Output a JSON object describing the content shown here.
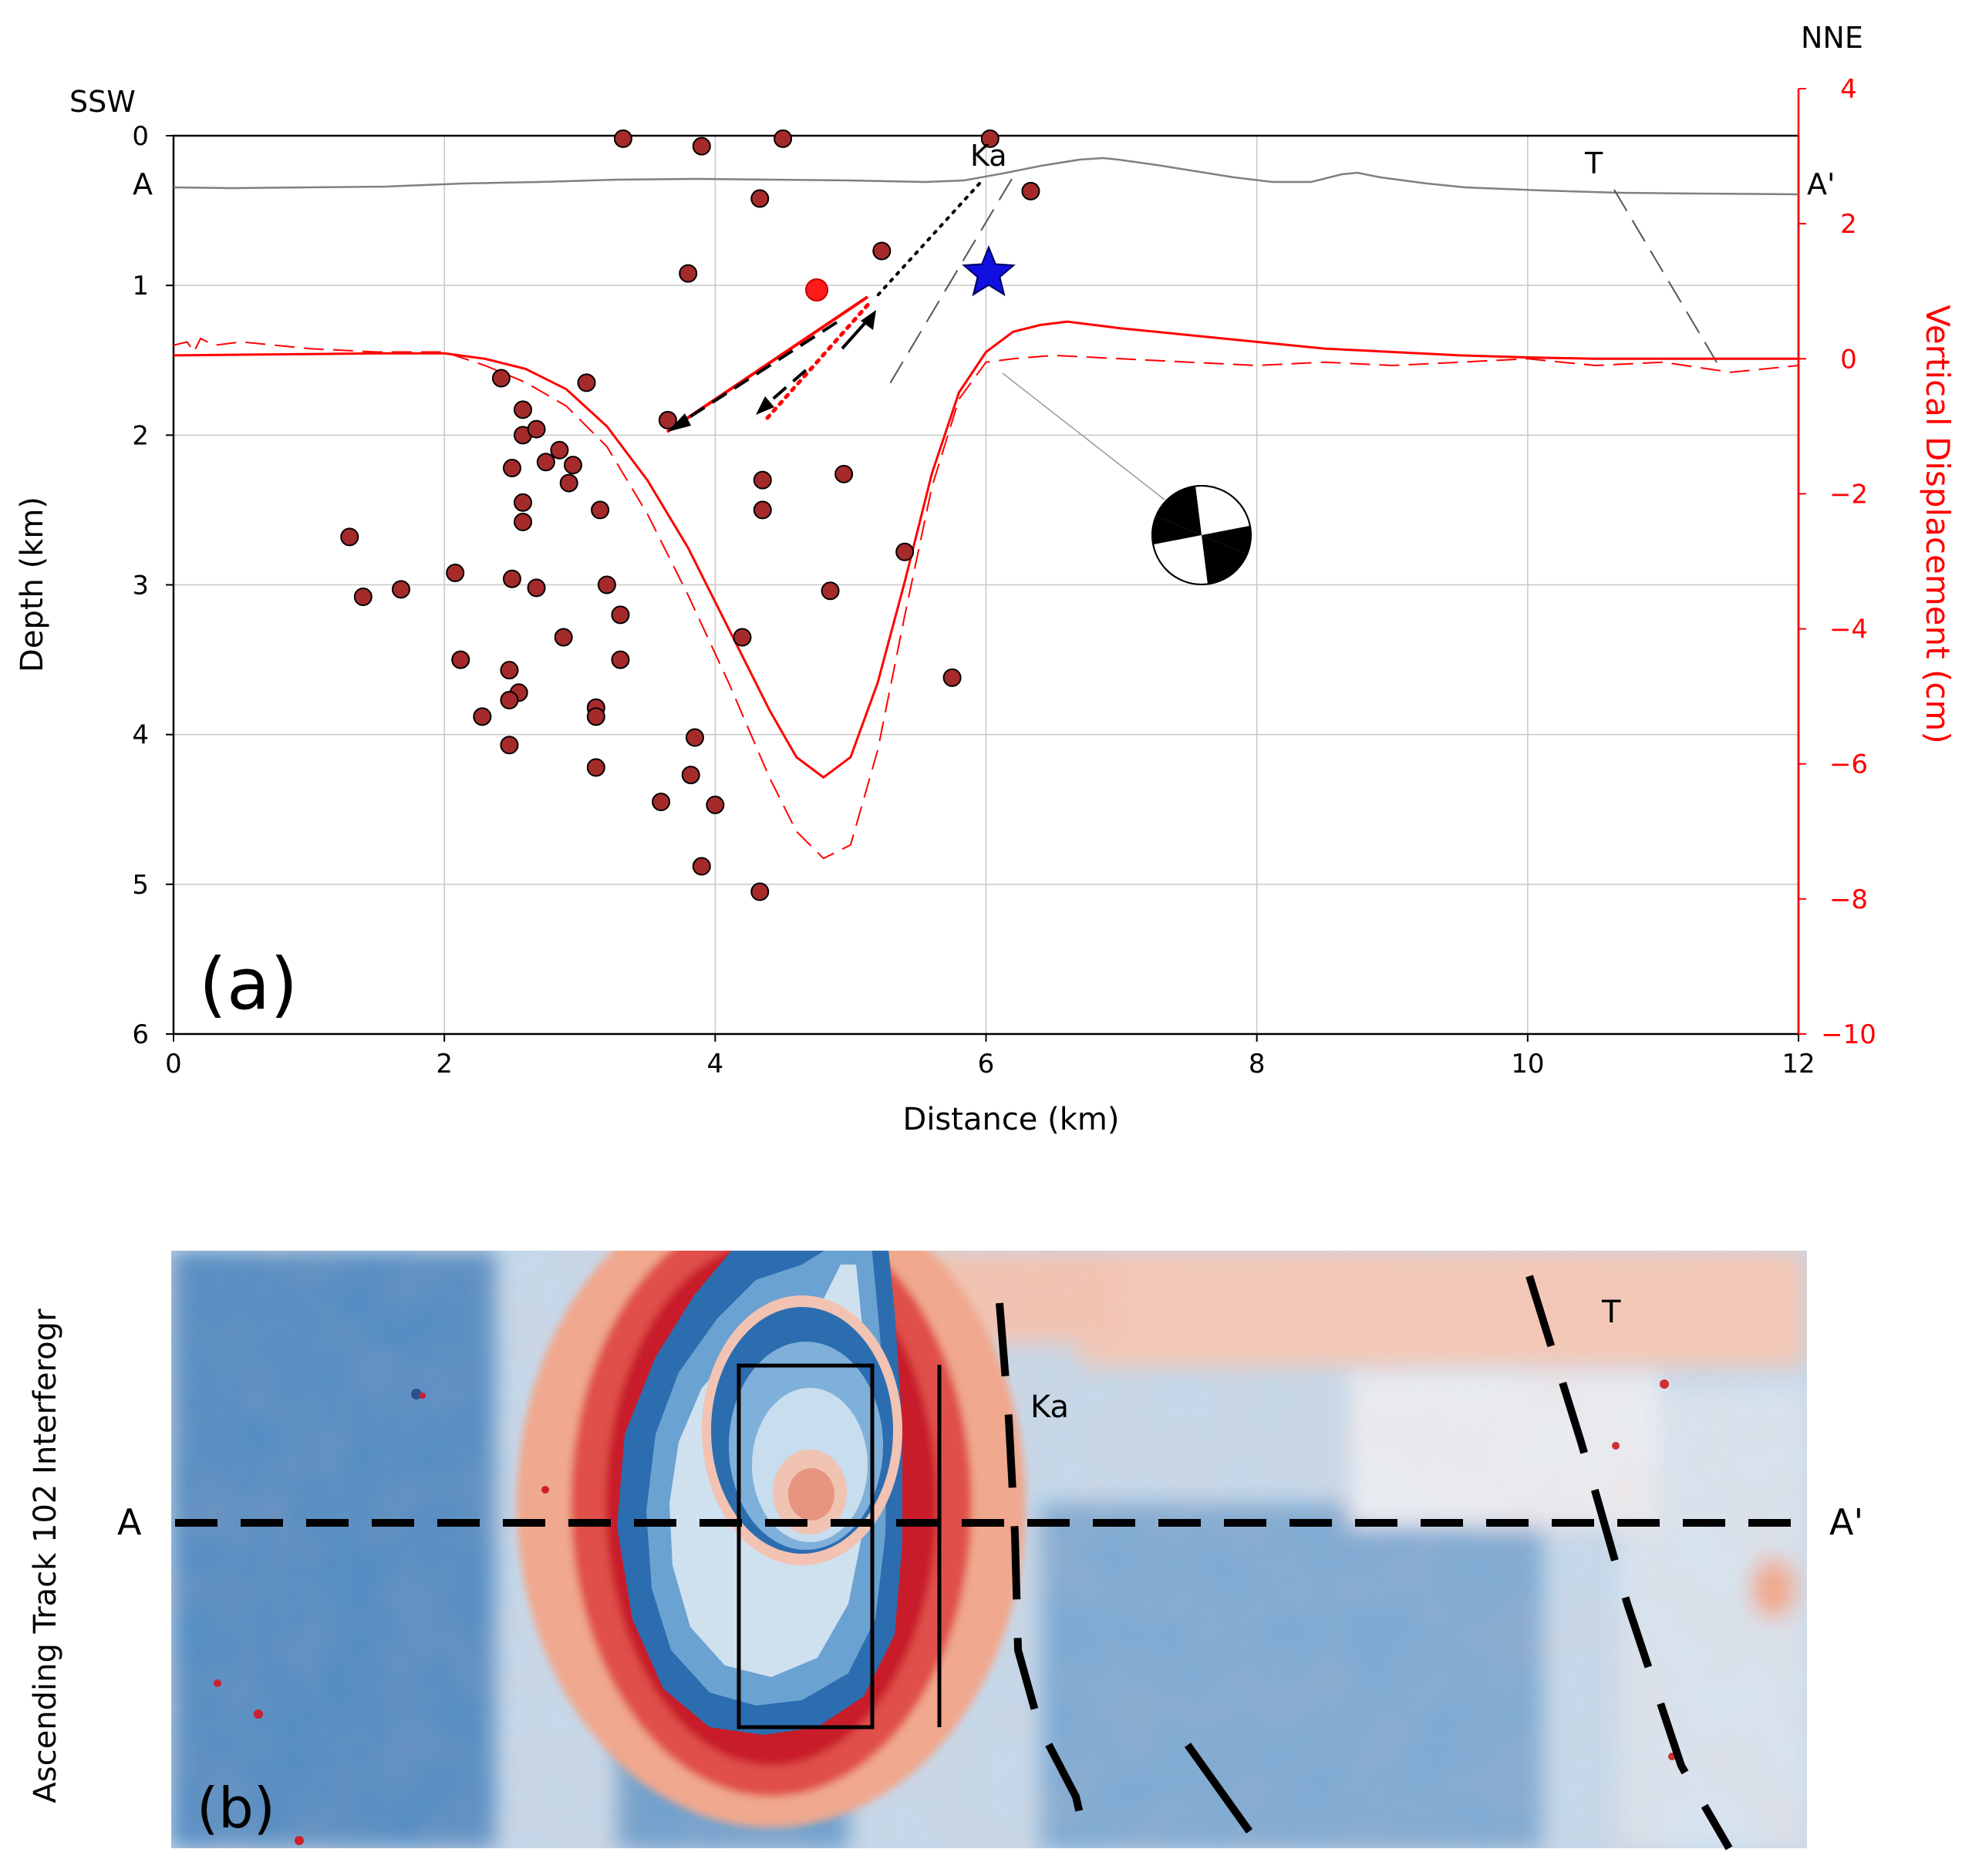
{
  "chart_data": [
    {
      "type": "scatter",
      "panel_label": "(a)",
      "title": "",
      "xlabel": "Distance (km)",
      "ylabel": "Depth (km)",
      "ylabel_right": "Vertical Displacement (cm)",
      "xlim": [
        0,
        12
      ],
      "ylim": [
        6,
        0
      ],
      "ylim_right": [
        -10,
        4
      ],
      "x_ticks": [
        "0",
        "2",
        "4",
        "6",
        "8",
        "10",
        "12"
      ],
      "y_ticks": [
        "0",
        "1",
        "2",
        "3",
        "4",
        "5",
        "6"
      ],
      "y_right_ticks": [
        "4",
        "2",
        "0",
        "−2",
        "−4",
        "−6",
        "−8",
        "−10"
      ],
      "grid": true,
      "direction_left": "SSW",
      "direction_right": "NNE",
      "section_start_label": "A",
      "section_end_label": "A'",
      "fault_labels": [
        "Ka",
        "T"
      ],
      "colors": {
        "earthquake": "#a52a2a",
        "displacement": "#ff0000",
        "topography": "#808080",
        "mainshock": "#1010e0",
        "grid": "#c8c8c8"
      },
      "earthquakes": [
        [
          3.32,
          0.02
        ],
        [
          3.9,
          0.07
        ],
        [
          4.5,
          0.02
        ],
        [
          4.33,
          0.42
        ],
        [
          6.03,
          0.02
        ],
        [
          6.33,
          0.37
        ],
        [
          5.23,
          0.77
        ],
        [
          3.8,
          0.92
        ],
        [
          2.42,
          1.62
        ],
        [
          3.05,
          1.65
        ],
        [
          3.65,
          1.9
        ],
        [
          2.58,
          1.83
        ],
        [
          2.58,
          2.0
        ],
        [
          2.68,
          1.96
        ],
        [
          2.85,
          2.1
        ],
        [
          2.75,
          2.18
        ],
        [
          2.95,
          2.2
        ],
        [
          2.5,
          2.22
        ],
        [
          2.92,
          2.32
        ],
        [
          4.35,
          2.3
        ],
        [
          4.95,
          2.26
        ],
        [
          2.58,
          2.45
        ],
        [
          3.15,
          2.5
        ],
        [
          4.35,
          2.5
        ],
        [
          2.58,
          2.58
        ],
        [
          1.3,
          2.68
        ],
        [
          5.4,
          2.78
        ],
        [
          2.08,
          2.92
        ],
        [
          2.5,
          2.96
        ],
        [
          2.68,
          3.02
        ],
        [
          3.2,
          3.0
        ],
        [
          4.85,
          3.04
        ],
        [
          1.4,
          3.08
        ],
        [
          1.68,
          3.03
        ],
        [
          3.3,
          3.2
        ],
        [
          2.88,
          3.35
        ],
        [
          4.2,
          3.35
        ],
        [
          2.12,
          3.5
        ],
        [
          3.3,
          3.5
        ],
        [
          2.48,
          3.57
        ],
        [
          5.75,
          3.62
        ],
        [
          2.55,
          3.72
        ],
        [
          2.48,
          3.77
        ],
        [
          3.12,
          3.82
        ],
        [
          3.12,
          3.88
        ],
        [
          2.28,
          3.88
        ],
        [
          3.85,
          4.02
        ],
        [
          2.48,
          4.07
        ],
        [
          3.12,
          4.22
        ],
        [
          3.82,
          4.27
        ],
        [
          3.6,
          4.45
        ],
        [
          4.0,
          4.47
        ],
        [
          3.9,
          4.88
        ],
        [
          4.33,
          5.05
        ]
      ],
      "mainshock": [
        6.02,
        0.92
      ],
      "model_source": [
        4.75,
        1.03
      ],
      "displacement_model": {
        "x": [
          0,
          0.5,
          1.0,
          1.5,
          2.0,
          2.3,
          2.6,
          2.9,
          3.2,
          3.5,
          3.8,
          4.1,
          4.4,
          4.6,
          4.8,
          5.0,
          5.2,
          5.4,
          5.6,
          5.8,
          6.0,
          6.2,
          6.4,
          6.6,
          6.8,
          7.0,
          7.5,
          8.0,
          8.5,
          9.0,
          9.5,
          10.0,
          10.5,
          11.0,
          12.0
        ],
        "y": [
          0.05,
          0.06,
          0.07,
          0.08,
          0.08,
          0.0,
          -0.15,
          -0.45,
          -1.0,
          -1.8,
          -2.8,
          -4.0,
          -5.2,
          -5.9,
          -6.2,
          -5.9,
          -4.8,
          -3.3,
          -1.7,
          -0.5,
          0.1,
          0.4,
          0.5,
          0.55,
          0.5,
          0.45,
          0.35,
          0.25,
          0.15,
          0.1,
          0.05,
          0.02,
          0.0,
          0.0,
          0.0
        ]
      },
      "displacement_observed": {
        "x": [
          0,
          0.1,
          0.15,
          0.2,
          0.3,
          0.5,
          1.0,
          1.5,
          2.0,
          2.3,
          2.6,
          2.9,
          3.2,
          3.5,
          3.8,
          4.1,
          4.4,
          4.6,
          4.8,
          5.0,
          5.2,
          5.4,
          5.6,
          5.8,
          6.0,
          6.2,
          6.5,
          7.0,
          7.5,
          8.0,
          8.5,
          9.0,
          9.5,
          10.0,
          10.5,
          11.0,
          11.5,
          12.0
        ],
        "y": [
          0.2,
          0.25,
          0.1,
          0.3,
          0.2,
          0.25,
          0.15,
          0.1,
          0.1,
          -0.1,
          -0.35,
          -0.7,
          -1.3,
          -2.3,
          -3.5,
          -4.8,
          -6.2,
          -7.0,
          -7.4,
          -7.2,
          -5.8,
          -3.8,
          -1.9,
          -0.6,
          -0.05,
          0.0,
          0.05,
          0.0,
          -0.05,
          -0.1,
          -0.05,
          -0.1,
          -0.05,
          0.0,
          -0.1,
          -0.05,
          -0.2,
          -0.1
        ]
      }
    },
    {
      "type": "heatmap",
      "panel_label": "(b)",
      "ylabel": "Ascending Track 102 Interferogr",
      "section_start_label": "A",
      "section_end_label": "A'",
      "fault_labels": [
        "Ka",
        "T"
      ],
      "colors": {
        "blue": "#2f6fb0",
        "light_blue": "#a9c9e4",
        "white": "#f6f2f0",
        "light_red": "#f2b39a",
        "red": "#cc1e2a"
      }
    }
  ]
}
